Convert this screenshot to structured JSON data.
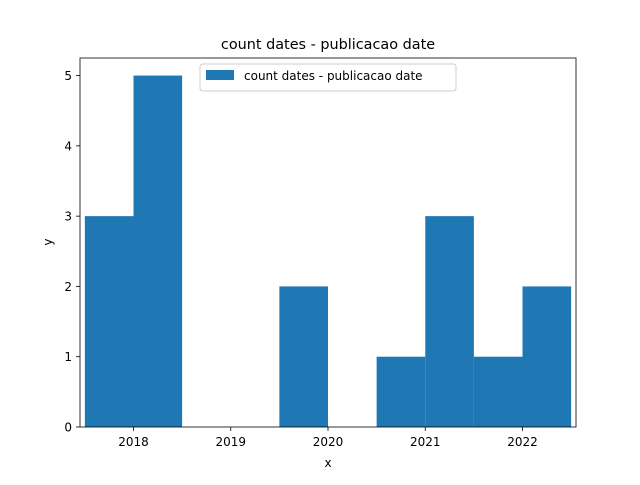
{
  "chart_data": {
    "type": "bar",
    "title": "count dates - publicacao date",
    "xlabel": "x",
    "ylabel": "y",
    "x_tick_labels": [
      "2018",
      "2019",
      "2020",
      "2021",
      "2022"
    ],
    "y_tick_labels": [
      "0",
      "1",
      "2",
      "3",
      "4",
      "5"
    ],
    "xlim": [
      2017.45,
      2022.55
    ],
    "ylim": [
      0,
      5.25
    ],
    "legend": "upper center",
    "grid": false,
    "series": [
      {
        "name": "count dates - publicacao date",
        "color": "#1f77b4",
        "bars": [
          {
            "x": 2017.75,
            "value": 3
          },
          {
            "x": 2018.25,
            "value": 5
          },
          {
            "x": 2018.75,
            "value": 0
          },
          {
            "x": 2019.25,
            "value": 0
          },
          {
            "x": 2019.75,
            "value": 2
          },
          {
            "x": 2020.25,
            "value": 0
          },
          {
            "x": 2020.75,
            "value": 1
          },
          {
            "x": 2021.25,
            "value": 3
          },
          {
            "x": 2021.75,
            "value": 1
          },
          {
            "x": 2022.25,
            "value": 2
          }
        ],
        "bar_width": 0.5
      }
    ]
  }
}
